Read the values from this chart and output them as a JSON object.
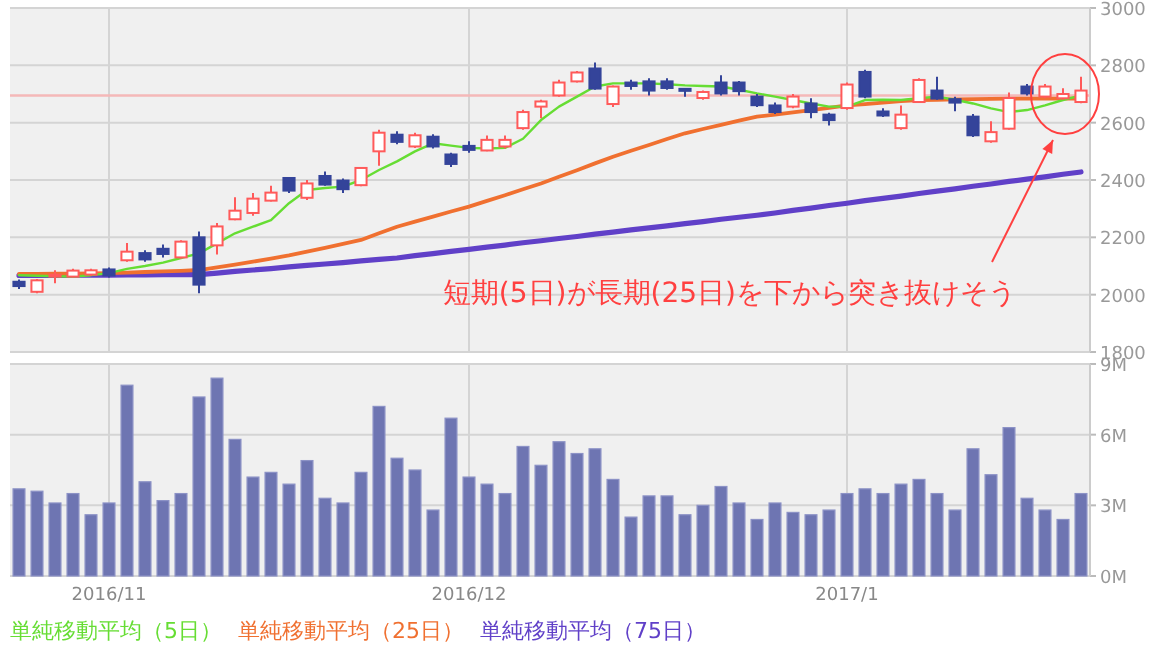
{
  "chart_data": [
    {
      "type": "candlestick",
      "categories": [
        null,
        null,
        null,
        null,
        null,
        "2016/11",
        null,
        null,
        null,
        null,
        null,
        null,
        null,
        null,
        null,
        null,
        null,
        null,
        null,
        null,
        null,
        null,
        null,
        null,
        null,
        "2016/12",
        null,
        null,
        null,
        null,
        null,
        null,
        null,
        null,
        null,
        null,
        null,
        null,
        null,
        null,
        null,
        null,
        null,
        null,
        null,
        null,
        "2017/1",
        null,
        null,
        null,
        null,
        null,
        null,
        null,
        null,
        null,
        null,
        null,
        null,
        null
      ],
      "ohlc": [
        [
          2045,
          2053,
          2020,
          2030
        ],
        [
          2010,
          2055,
          2005,
          2050
        ],
        [
          2065,
          2085,
          2040,
          2070
        ],
        [
          2063,
          2090,
          2060,
          2084
        ],
        [
          2070,
          2090,
          2065,
          2085
        ],
        [
          2088,
          2095,
          2060,
          2067
        ],
        [
          2120,
          2180,
          2115,
          2150
        ],
        [
          2145,
          2155,
          2115,
          2123
        ],
        [
          2160,
          2175,
          2130,
          2142
        ],
        [
          2130,
          2190,
          2125,
          2185
        ],
        [
          2200,
          2220,
          2005,
          2035
        ],
        [
          2172,
          2250,
          2140,
          2238
        ],
        [
          2263,
          2340,
          2260,
          2293
        ],
        [
          2285,
          2355,
          2275,
          2335
        ],
        [
          2328,
          2380,
          2325,
          2356
        ],
        [
          2407,
          2410,
          2355,
          2363
        ],
        [
          2338,
          2400,
          2330,
          2388
        ],
        [
          2414,
          2430,
          2380,
          2384
        ],
        [
          2398,
          2405,
          2355,
          2368
        ],
        [
          2382,
          2445,
          2378,
          2442
        ],
        [
          2500,
          2575,
          2450,
          2565
        ],
        [
          2558,
          2570,
          2525,
          2533
        ],
        [
          2517,
          2565,
          2512,
          2556
        ],
        [
          2551,
          2560,
          2510,
          2517
        ],
        [
          2489,
          2495,
          2445,
          2456
        ],
        [
          2519,
          2535,
          2495,
          2505
        ],
        [
          2503,
          2555,
          2500,
          2540
        ],
        [
          2517,
          2555,
          2510,
          2540
        ],
        [
          2581,
          2645,
          2575,
          2637
        ],
        [
          2656,
          2680,
          2615,
          2674
        ],
        [
          2695,
          2750,
          2690,
          2740
        ],
        [
          2744,
          2780,
          2740,
          2775
        ],
        [
          2789,
          2810,
          2715,
          2719
        ],
        [
          2665,
          2730,
          2655,
          2726
        ],
        [
          2740,
          2750,
          2715,
          2728
        ],
        [
          2744,
          2755,
          2695,
          2712
        ],
        [
          2744,
          2755,
          2715,
          2721
        ],
        [
          2718,
          2720,
          2690,
          2714
        ],
        [
          2686,
          2712,
          2680,
          2707
        ],
        [
          2740,
          2765,
          2695,
          2702
        ],
        [
          2740,
          2745,
          2695,
          2710
        ],
        [
          2691,
          2700,
          2655,
          2661
        ],
        [
          2660,
          2670,
          2630,
          2637
        ],
        [
          2656,
          2700,
          2650,
          2691
        ],
        [
          2667,
          2685,
          2615,
          2637
        ],
        [
          2628,
          2635,
          2590,
          2609
        ],
        [
          2651,
          2740,
          2645,
          2733
        ],
        [
          2777,
          2785,
          2685,
          2691
        ],
        [
          2639,
          2650,
          2620,
          2625
        ],
        [
          2581,
          2660,
          2575,
          2628
        ],
        [
          2672,
          2755,
          2670,
          2749
        ],
        [
          2712,
          2760,
          2680,
          2684
        ],
        [
          2682,
          2690,
          2640,
          2670
        ],
        [
          2621,
          2630,
          2550,
          2556
        ],
        [
          2535,
          2605,
          2530,
          2567
        ],
        [
          2579,
          2705,
          2575,
          2686
        ],
        [
          2726,
          2735,
          2695,
          2702
        ],
        [
          2691,
          2735,
          2685,
          2726
        ],
        [
          2685,
          2720,
          2680,
          2700
        ],
        [
          2672,
          2760,
          2668,
          2712
        ]
      ],
      "series": [
        {
          "type": "line",
          "name": "単純移動平均（5日）",
          "color": "#66dd33",
          "values": [
            2068,
            2066,
            2064,
            2063,
            2068,
            2075,
            2090,
            2100,
            2112,
            2128,
            2144,
            2179,
            2214,
            2237,
            2260,
            2319,
            2365,
            2372,
            2377,
            2400,
            2435,
            2465,
            2500,
            2528,
            2520,
            2512,
            2510,
            2512,
            2544,
            2609,
            2656,
            2691,
            2726,
            2737,
            2737,
            2737,
            2734,
            2730,
            2728,
            2726,
            2715,
            2702,
            2691,
            2679,
            2667,
            2656,
            2656,
            2679,
            2680,
            2679,
            2685,
            2691,
            2680,
            2667,
            2650,
            2637,
            2644,
            2660,
            2679,
            2695
          ]
        },
        {
          "type": "line",
          "name": "単純移動平均（25日）",
          "color": "#f07030",
          "values": [
            2072,
            2072,
            2073,
            2073,
            2074,
            2075,
            2077,
            2079,
            2081,
            2083,
            2086,
            2095,
            2105,
            2115,
            2126,
            2137,
            2150,
            2163,
            2177,
            2191,
            2214,
            2237,
            2255,
            2272,
            2290,
            2307,
            2327,
            2347,
            2368,
            2388,
            2411,
            2434,
            2458,
            2481,
            2502,
            2522,
            2543,
            2563,
            2578,
            2592,
            2607,
            2621,
            2628,
            2636,
            2644,
            2652,
            2660,
            2665,
            2670,
            2675,
            2679,
            2680,
            2681,
            2682,
            2683,
            2684,
            2684,
            2684,
            2684,
            2684
          ]
        },
        {
          "type": "line",
          "name": "単純移動平均（75日）",
          "color": "#6040c8",
          "values": [
            2067,
            2067,
            2067,
            2068,
            2068,
            2068,
            2069,
            2069,
            2070,
            2070,
            2070,
            2075,
            2081,
            2086,
            2091,
            2097,
            2102,
            2107,
            2112,
            2118,
            2123,
            2128,
            2136,
            2143,
            2151,
            2158,
            2166,
            2173,
            2181,
            2188,
            2196,
            2203,
            2211,
            2218,
            2226,
            2233,
            2240,
            2248,
            2255,
            2263,
            2270,
            2277,
            2285,
            2294,
            2302,
            2311,
            2319,
            2328,
            2336,
            2344,
            2353,
            2361,
            2369,
            2378,
            2386,
            2395,
            2403,
            2411,
            2420,
            2428
          ]
        }
      ],
      "ylim": [
        1800,
        3000
      ],
      "yticks": [
        1800,
        2000,
        2200,
        2400,
        2600,
        2800,
        3000
      ],
      "ref_lines": [
        {
          "axis": "y",
          "value": 2695,
          "color": "#f5b8b8"
        }
      ],
      "annotations": [
        "短期(5日)が長期(25日)を下から突き抜けそう"
      ],
      "grid": true,
      "legend": "bottom",
      "tick_labels": "y"
    },
    {
      "type": "bar",
      "categories": [
        null,
        null,
        null,
        null,
        null,
        "2016/11",
        null,
        null,
        null,
        null,
        null,
        null,
        null,
        null,
        null,
        null,
        null,
        null,
        null,
        null,
        null,
        null,
        null,
        null,
        null,
        "2016/12",
        null,
        null,
        null,
        null,
        null,
        null,
        null,
        null,
        null,
        null,
        null,
        null,
        null,
        null,
        null,
        null,
        null,
        null,
        null,
        null,
        "2017/1",
        null,
        null,
        null,
        null,
        null,
        null,
        null,
        null,
        null,
        null,
        null,
        null,
        null
      ],
      "values": [
        3.7,
        3.6,
        3.1,
        3.5,
        2.6,
        3.1,
        8.1,
        4.0,
        3.2,
        3.5,
        7.6,
        8.4,
        5.8,
        4.2,
        4.4,
        3.9,
        4.9,
        3.3,
        3.1,
        4.4,
        7.2,
        5.0,
        4.5,
        2.8,
        6.7,
        4.2,
        3.9,
        3.5,
        5.5,
        4.7,
        5.7,
        5.2,
        5.4,
        4.1,
        2.5,
        3.4,
        3.4,
        2.6,
        3.0,
        3.8,
        3.1,
        2.4,
        3.1,
        2.7,
        2.6,
        2.8,
        3.5,
        3.7,
        3.5,
        3.9,
        4.1,
        3.5,
        2.8,
        5.4,
        4.3,
        6.3,
        3.3,
        2.8,
        2.4,
        3.5
      ],
      "color": "#6e75b2",
      "ylim": [
        0,
        9
      ],
      "yticks": [
        {
          "value": 0,
          "label": "0M"
        },
        {
          "value": 3,
          "label": "3M"
        },
        {
          "value": 6,
          "label": "6M"
        },
        {
          "value": 9,
          "label": "9M"
        }
      ],
      "grid": true
    }
  ]
}
